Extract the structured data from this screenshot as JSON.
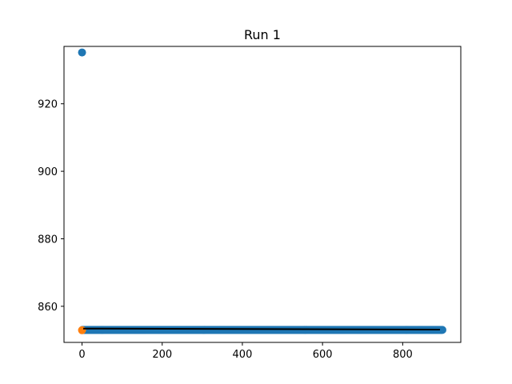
{
  "chart_data": {
    "type": "scatter",
    "title": "Run 1",
    "xlabel": "",
    "ylabel": "",
    "xlim": [
      -45,
      945
    ],
    "ylim": [
      849.3,
      937.0
    ],
    "xticks": [
      0,
      200,
      400,
      600,
      800
    ],
    "yticks": [
      860,
      880,
      900,
      920
    ],
    "grid": false,
    "series": [
      {
        "color": "#1f77b4",
        "marker": "circle",
        "points_description": "dense run of points",
        "points": [
          [
            0,
            935.2
          ]
        ],
        "dense_run": {
          "x_start": 1,
          "x_end": 900,
          "y": 853.0
        }
      },
      {
        "color": "#ff7f0e",
        "marker": "circle",
        "points": [
          [
            0,
            852.9
          ]
        ]
      },
      {
        "color": "#000000",
        "marker": "line",
        "line": [
          [
            3,
            853.4
          ],
          [
            893,
            853.1
          ]
        ]
      }
    ]
  }
}
